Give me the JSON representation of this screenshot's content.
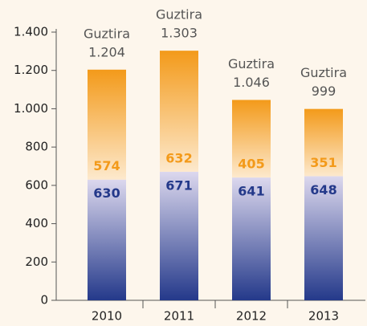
{
  "chart_data": {
    "type": "stacked-bar",
    "categories": [
      "2010",
      "2011",
      "2012",
      "2013"
    ],
    "series": [
      {
        "color": "#24398a",
        "values": [
          630,
          671,
          641,
          648
        ]
      },
      {
        "color": "#f39a1a",
        "values": [
          574,
          632,
          405,
          351
        ]
      }
    ],
    "totals": {
      "label": "Guztira",
      "values": [
        1204,
        1303,
        1046,
        999
      ],
      "value_labels": [
        "1.204",
        "1.303",
        "1.046",
        "999"
      ]
    },
    "ylim": [
      0,
      1400
    ],
    "yticks": [
      0,
      200,
      400,
      600,
      800,
      {
        "value": 1000,
        "label": "1.000"
      },
      {
        "value": 1200,
        "label": "1.200"
      },
      {
        "value": 1400,
        "label": "1.400"
      }
    ]
  }
}
